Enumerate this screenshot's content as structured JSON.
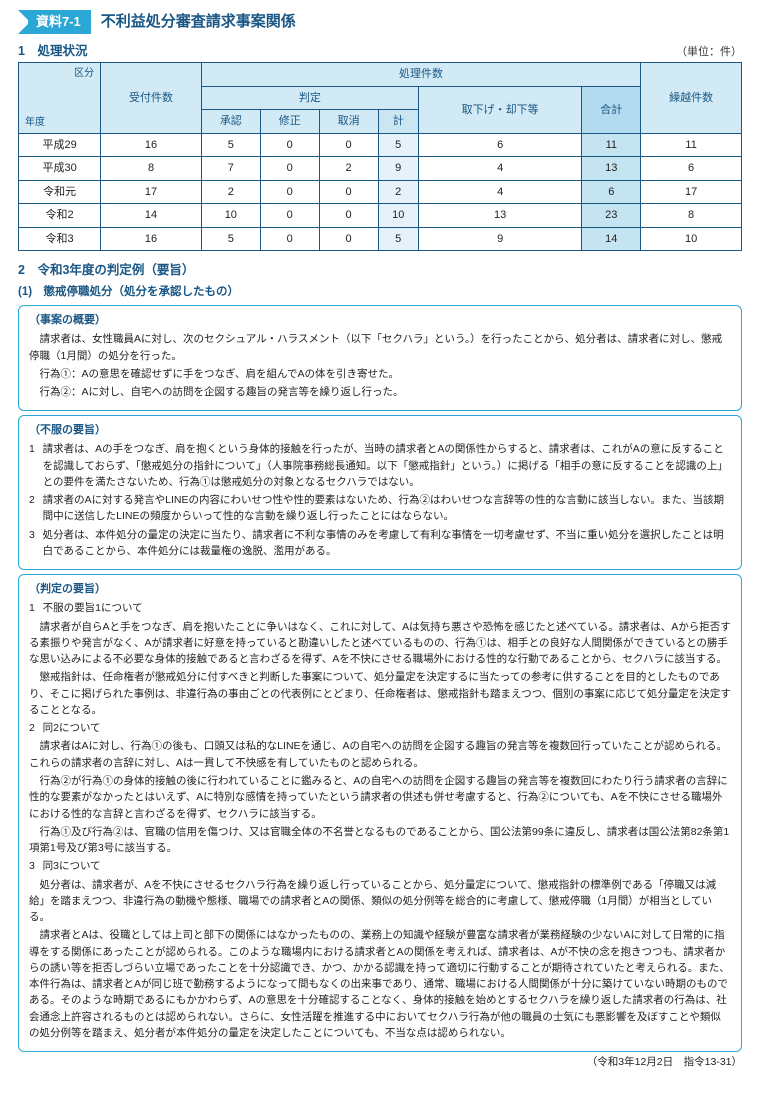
{
  "header": {
    "badge": "資料7-1",
    "title": "不利益処分審査請求事案関係"
  },
  "section1": {
    "heading": "1　処理状況",
    "unit": "（単位：件）",
    "table": {
      "diag": {
        "upper": "区分",
        "lower": "年度"
      },
      "headers": {
        "uketsuke": "受付件数",
        "shori": "処理件数",
        "hantei": "判定",
        "shonin": "承認",
        "shusei": "修正",
        "torikeshi": "取消",
        "kei": "計",
        "torisage": "取下げ・却下等",
        "goukei": "合計",
        "kurikoshi": "繰越件数"
      },
      "rows": [
        {
          "y": "平成29",
          "a": "16",
          "b": "5",
          "c": "0",
          "d": "0",
          "e": "5",
          "f": "6",
          "g": "11",
          "h": "11"
        },
        {
          "y": "平成30",
          "a": "8",
          "b": "7",
          "c": "0",
          "d": "2",
          "e": "9",
          "f": "4",
          "g": "13",
          "h": "6"
        },
        {
          "y": "令和元",
          "a": "17",
          "b": "2",
          "c": "0",
          "d": "0",
          "e": "2",
          "f": "4",
          "g": "6",
          "h": "17"
        },
        {
          "y": "令和2",
          "a": "14",
          "b": "10",
          "c": "0",
          "d": "0",
          "e": "10",
          "f": "13",
          "g": "23",
          "h": "8"
        },
        {
          "y": "令和3",
          "a": "16",
          "b": "5",
          "c": "0",
          "d": "0",
          "e": "5",
          "f": "9",
          "g": "14",
          "h": "10"
        }
      ]
    }
  },
  "section2": {
    "heading": "2　令和3年度の判定例（要旨）",
    "sub": "(1)　懲戒停職処分（処分を承認したもの）",
    "box1": {
      "title": "（事案の概要）",
      "p1": "請求者は、女性職員Aに対し、次のセクシュアル・ハラスメント（以下「セクハラ」という。）を行ったことから、処分者は、請求者に対し、懲戒停職（1月間）の処分を行った。",
      "p2": "行為①：Aの意思を確認せずに手をつなぎ、肩を組んでAの体を引き寄せた。",
      "p3": "行為②：Aに対し、自宅への訪問を企図する趣旨の発言等を繰り返し行った。"
    },
    "box2": {
      "title": "（不服の要旨）",
      "i1": "請求者は、Aの手をつなぎ、肩を抱くという身体的接触を行ったが、当時の請求者とAの関係性からすると、請求者は、これがAの意に反することを認識しておらず、「懲戒処分の指針について」（人事院事務総長通知。以下「懲戒指針」という。）に掲げる「相手の意に反することを認識の上」との要件を満たさないため、行為①は懲戒処分の対象となるセクハラではない。",
      "i2": "請求者のAに対する発言やLINEの内容にわいせつ性や性的要素はないため、行為②はわいせつな言辞等の性的な言動に該当しない。また、当該期間中に送信したLINEの頻度からいって性的な言動を繰り返し行ったことにはならない。",
      "i3": "処分者は、本件処分の量定の決定に当たり、請求者に不利な事情のみを考慮して有利な事情を一切考慮せず、不当に重い処分を選択したことは明白であることから、本件処分には裁量権の逸脱、濫用がある。"
    },
    "box3": {
      "title": "（判定の要旨）",
      "h1": "不服の要旨1について",
      "p1a": "請求者が自らAと手をつなぎ、肩を抱いたことに争いはなく、これに対して、Aは気持ち悪さや恐怖を感じたと述べている。請求者は、Aから拒否する素振りや発言がなく、Aが請求者に好意を持っていると勘違いしたと述べているものの、行為①は、相手との良好な人間関係ができているとの勝手な思い込みによる不必要な身体的接触であると言わざるを得ず、Aを不快にさせる職場外における性的な行動であることから、セクハラに該当する。",
      "p1b": "懲戒指針は、任命権者が懲戒処分に付すべきと判断した事案について、処分量定を決定するに当たっての参考に供することを目的としたものであり、そこに掲げられた事例は、非違行為の事由ごとの代表例にとどまり、任命権者は、懲戒指針も踏まえつつ、個別の事案に応じて処分量定を決定することとなる。",
      "h2": "同2について",
      "p2a": "請求者はAに対し、行為①の後も、口頭又は私的なLINEを通じ、Aの自宅への訪問を企図する趣旨の発言等を複数回行っていたことが認められる。これらの請求者の言辞に対し、Aは一貫して不快感を有していたものと認められる。",
      "p2b": "行為②が行為①の身体的接触の後に行われていることに鑑みると、Aの自宅への訪問を企図する趣旨の発言等を複数回にわたり行う請求者の言辞に性的な要素がなかったとはいえず、Aに特別な感情を持っていたという請求者の供述も併せ考慮すると、行為②についても、Aを不快にさせる職場外における性的な言辞と言わざるを得ず、セクハラに該当する。",
      "p2c": "行為①及び行為②は、官職の信用を傷つけ、又は官職全体の不名誉となるものであることから、国公法第99条に違反し、請求者は国公法第82条第1項第1号及び第3号に該当する。",
      "h3": "同3について",
      "p3a": "処分者は、請求者が、Aを不快にさせるセクハラ行為を繰り返し行っていることから、処分量定について、懲戒指針の標準例である「停職又は減給」を踏まえつつ、非違行為の動機や態様、職場での請求者とAの関係、類似の処分例等を総合的に考慮して、懲戒停職（1月間）が相当としている。",
      "p3b": "請求者とAは、役職としては上司と部下の関係にはなかったものの、業務上の知識や経験が豊富な請求者が業務経験の少ないAに対して日常的に指導をする関係にあったことが認められる。このような職場内における請求者とAの関係を考えれば、請求者は、Aが不快の念を抱きつつも、請求者からの誘い等を拒否しづらい立場であったことを十分認識でき、かつ、かかる認識を持って適切に行動することが期待されていたと考えられる。また、本件行為は、請求者とAが同じ班で勤務するようになって間もなくの出来事であり、通常、職場における人間関係が十分に築けていない時期のものである。そのような時期であるにもかかわらず、Aの意思を十分確認することなく、身体的接触を始めとするセクハラを繰り返した請求者の行為は、社会通念上許容されるものとは認められない。さらに、女性活躍を推進する中においてセクハラ行為が他の職員の士気にも悪影響を及ぼすことや類似の処分例等を踏まえ、処分者が本件処分の量定を決定したことについても、不当な点は認められない。"
    },
    "footer": "（令和3年12月2日　指令13-31）"
  }
}
